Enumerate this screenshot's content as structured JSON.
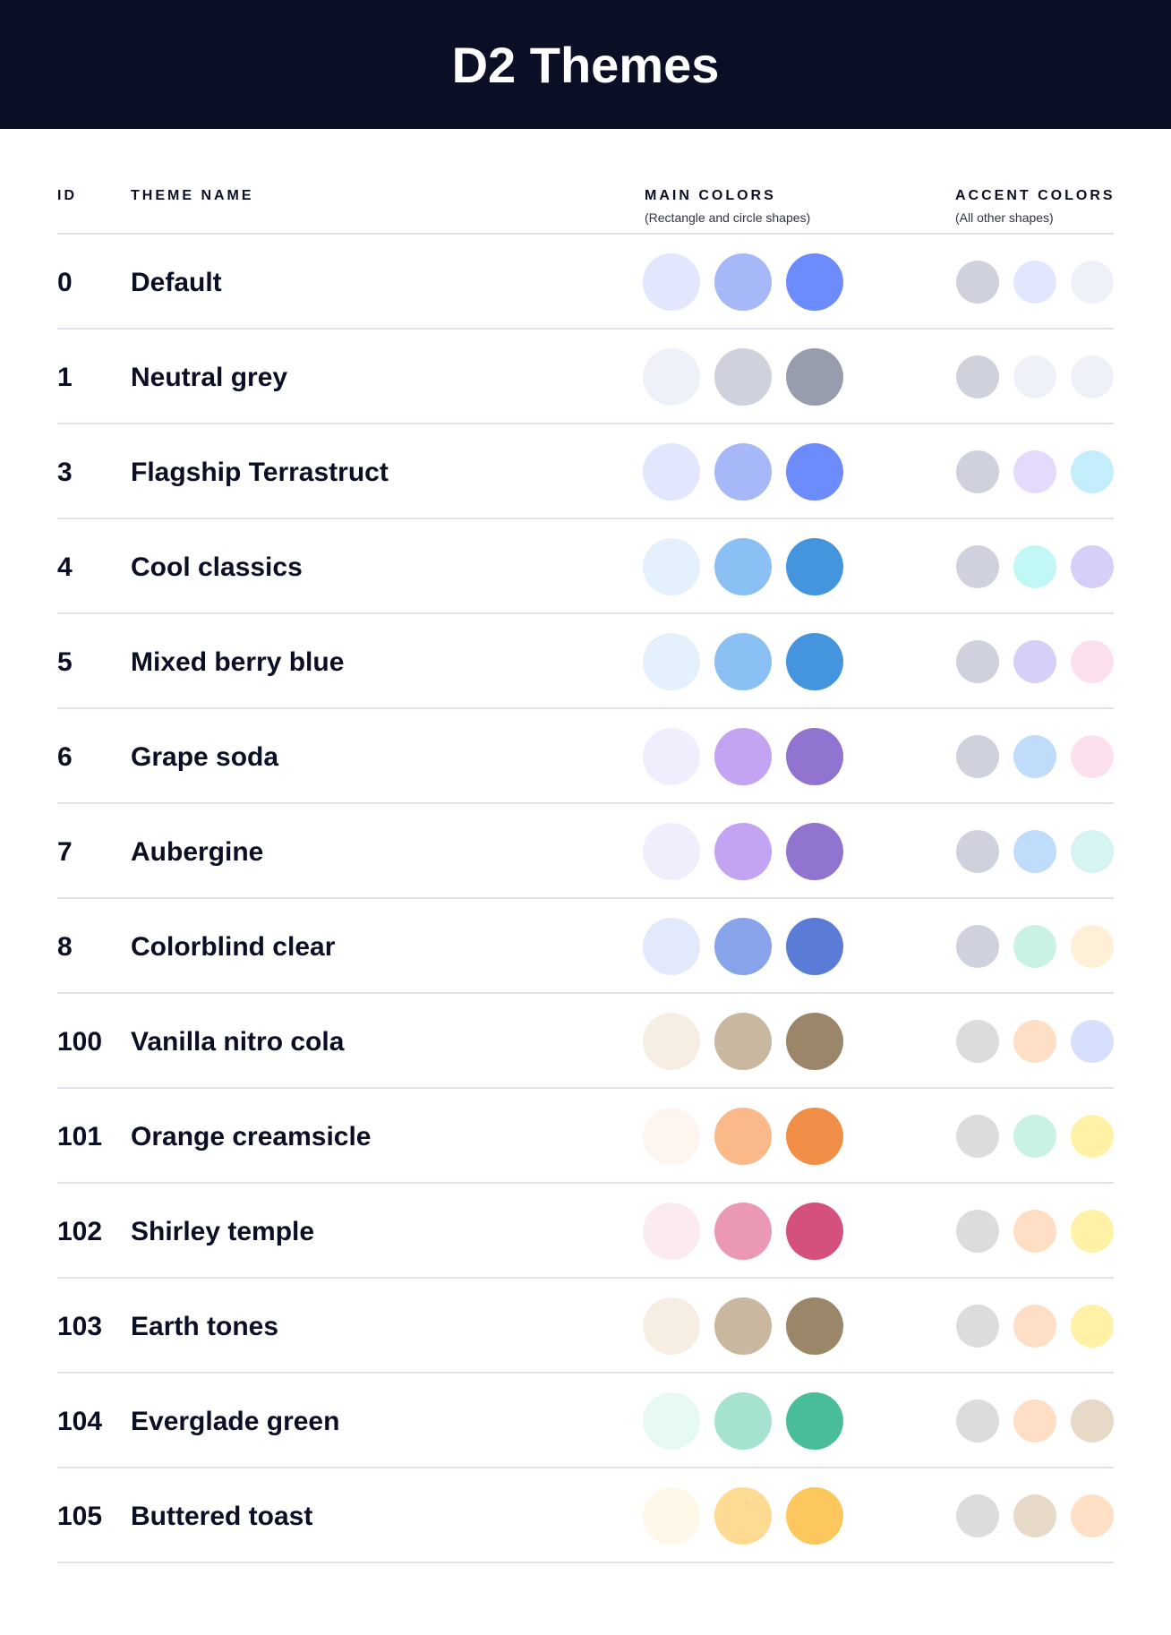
{
  "title": "D2 Themes",
  "columns": {
    "id": "ID",
    "name": "THEME NAME",
    "main": "MAIN COLORS",
    "main_sub": "(Rectangle and circle shapes)",
    "accent": "ACCENT COLORS",
    "accent_sub": "(All other shapes)"
  },
  "themes": [
    {
      "id": "0",
      "name": "Default",
      "main": [
        "#E3E7FD",
        "#A7B8F8",
        "#6C8CFC"
      ],
      "accent": [
        "#CFD2DD",
        "#E3E7FD",
        "#EEF1F8"
      ]
    },
    {
      "id": "1",
      "name": "Neutral grey",
      "main": [
        "#EEF1F8",
        "#CFD2DD",
        "#979DAD"
      ],
      "accent": [
        "#CFD2DD",
        "#EEF1F8",
        "#EEF1F8"
      ]
    },
    {
      "id": "3",
      "name": "Flagship Terrastruct",
      "main": [
        "#E3E7FD",
        "#A7B8F8",
        "#6C8CFC"
      ],
      "accent": [
        "#CFD2DD",
        "#E5DAFC",
        "#C5EEFC"
      ]
    },
    {
      "id": "4",
      "name": "Cool classics",
      "main": [
        "#E4F1FC",
        "#8BC0F4",
        "#4494DE"
      ],
      "accent": [
        "#CFD2DD",
        "#C1F8F5",
        "#D8CFF8"
      ]
    },
    {
      "id": "5",
      "name": "Mixed berry blue",
      "main": [
        "#E4F1FC",
        "#8BC0F4",
        "#4494DE"
      ],
      "accent": [
        "#CFD2DD",
        "#D8CFF8",
        "#FCE0F0"
      ]
    },
    {
      "id": "6",
      "name": "Grape soda",
      "main": [
        "#F0EDFD",
        "#C3A4F2",
        "#9174D0"
      ],
      "accent": [
        "#CFD2DD",
        "#BFDCFB",
        "#FCE0F0"
      ]
    },
    {
      "id": "7",
      "name": "Aubergine",
      "main": [
        "#F0EDFD",
        "#C3A4F2",
        "#9174D0"
      ],
      "accent": [
        "#CFD2DD",
        "#BFDCFB",
        "#D6F4F1"
      ]
    },
    {
      "id": "8",
      "name": "Colorblind clear",
      "main": [
        "#E3E9FD",
        "#89A3EB",
        "#5A7BD6"
      ],
      "accent": [
        "#CFD2DD",
        "#C9F1E4",
        "#FEF0D7"
      ]
    },
    {
      "id": "100",
      "name": "Vanilla nitro cola",
      "main": [
        "#F7EEE3",
        "#C9B79F",
        "#9C8669"
      ],
      "accent": [
        "#DEDCDA",
        "#FFDEC6",
        "#D6E0FC"
      ]
    },
    {
      "id": "101",
      "name": "Orange creamsicle",
      "main": [
        "#FEF5EF",
        "#FBB98A",
        "#F18F48"
      ],
      "accent": [
        "#DEDCDA",
        "#C9F1E4",
        "#FFF2A6"
      ]
    },
    {
      "id": "102",
      "name": "Shirley temple",
      "main": [
        "#FBEBF1",
        "#EA98B4",
        "#D4507D"
      ],
      "accent": [
        "#DEDCDA",
        "#FFDEC6",
        "#FFF2A6"
      ]
    },
    {
      "id": "103",
      "name": "Earth tones",
      "main": [
        "#F7EEE3",
        "#C9B79F",
        "#9C8669"
      ],
      "accent": [
        "#DEDCDA",
        "#FFDEC6",
        "#FFF2A6"
      ]
    },
    {
      "id": "104",
      "name": "Everglade green",
      "main": [
        "#E7FAF2",
        "#A5E3D0",
        "#49BD99"
      ],
      "accent": [
        "#DEDCDA",
        "#FFDEC6",
        "#E6D9C7"
      ]
    },
    {
      "id": "105",
      "name": "Buttered toast",
      "main": [
        "#FFF7E7",
        "#FFDA93",
        "#FCC75C"
      ],
      "accent": [
        "#DEDCDA",
        "#E6D9C7",
        "#FFE0C6"
      ]
    }
  ]
}
